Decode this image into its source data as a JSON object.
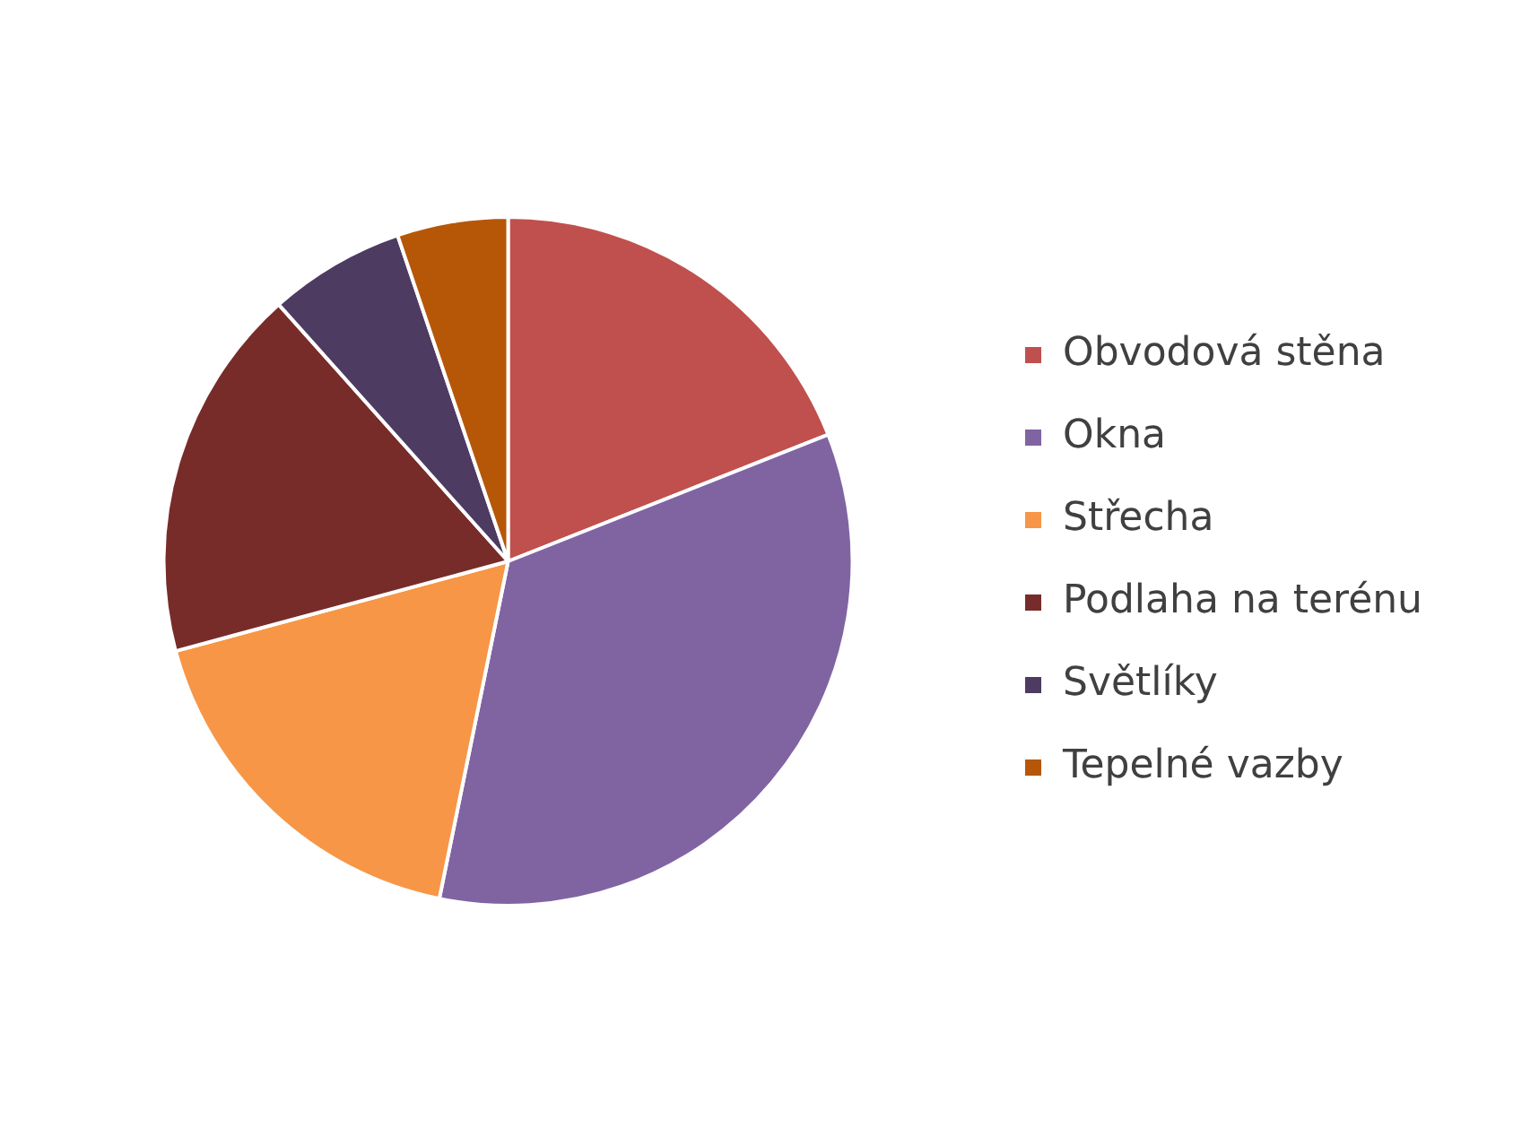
{
  "chart_data": {
    "type": "pie",
    "categories": [
      "Obvodová stěna",
      "Okna",
      "Střecha",
      "Podlaha na terénu",
      "Světlíky",
      "Tepelné vazby"
    ],
    "values": [
      19,
      34.2,
      17.6,
      17.6,
      6.4,
      5.2
    ],
    "colors": [
      "#c0504d",
      "#8064a2",
      "#f79646",
      "#772c2a",
      "#4d3b62",
      "#b65708"
    ],
    "legend": "right"
  }
}
